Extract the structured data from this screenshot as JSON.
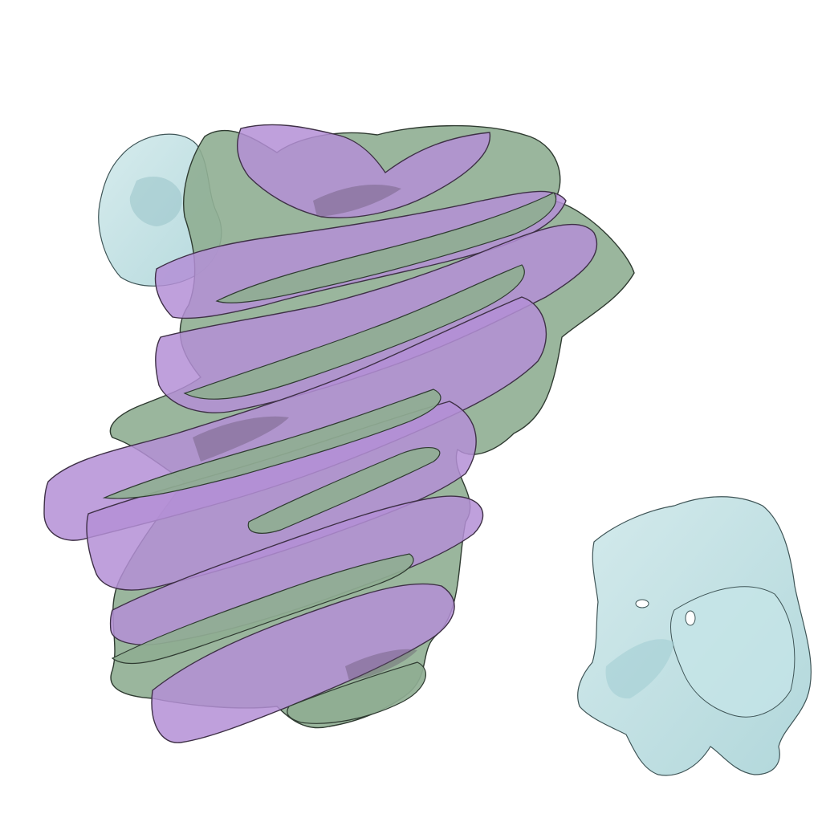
{
  "scene": {
    "background": "#ffffff",
    "structures": [
      {
        "name": "purple-density",
        "fill": "#b48fd6",
        "stroke": "#3e3046"
      },
      {
        "name": "green-density",
        "fill": "#8fae92",
        "stroke": "#2f3b31"
      },
      {
        "name": "cyan-density",
        "fill": "#b9dde0",
        "stroke": "#3f5557"
      }
    ]
  }
}
